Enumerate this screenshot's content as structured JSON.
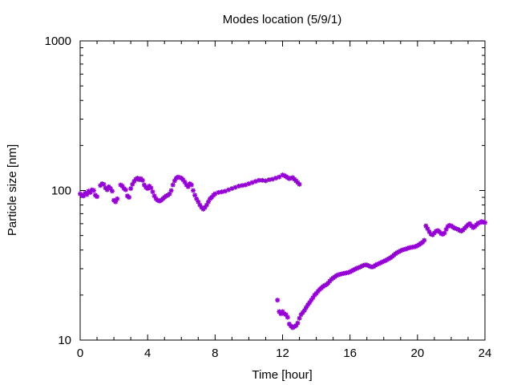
{
  "chart_data": {
    "type": "scatter",
    "title": "Modes location (5/9/1)",
    "xlabel": "Time [hour]",
    "ylabel": "Particle size [nm]",
    "xlim": [
      0,
      24
    ],
    "ylim": [
      10,
      1000
    ],
    "yscale": "log",
    "xticks": [
      0,
      4,
      8,
      12,
      16,
      20,
      24
    ],
    "xtick_labels": [
      "0",
      "4",
      "8",
      "12",
      "16",
      "20",
      "24"
    ],
    "yticks": [
      10,
      100,
      1000
    ],
    "ytick_labels": [
      "10",
      "100",
      "1000"
    ],
    "grid": false,
    "legend": "none",
    "marker_color": "#9400d3",
    "series": [
      {
        "points": [
          [
            0.0,
            95
          ],
          [
            0.1,
            93
          ],
          [
            0.2,
            92
          ],
          [
            0.3,
            96
          ],
          [
            0.4,
            94
          ],
          [
            0.5,
            99
          ],
          [
            0.6,
            97
          ],
          [
            0.7,
            101
          ],
          [
            0.8,
            100
          ],
          [
            0.9,
            93
          ],
          [
            1.0,
            91
          ],
          [
            1.2,
            108
          ],
          [
            1.3,
            111
          ],
          [
            1.4,
            110
          ],
          [
            1.5,
            104
          ],
          [
            1.6,
            101
          ],
          [
            1.7,
            106
          ],
          [
            1.8,
            103
          ],
          [
            1.9,
            99
          ],
          [
            2.0,
            86
          ],
          [
            2.1,
            84
          ],
          [
            2.2,
            88
          ],
          [
            2.4,
            109
          ],
          [
            2.5,
            107
          ],
          [
            2.6,
            103
          ],
          [
            2.7,
            101
          ],
          [
            2.8,
            92
          ],
          [
            2.9,
            90
          ],
          [
            3.0,
            103
          ],
          [
            3.1,
            110
          ],
          [
            3.2,
            115
          ],
          [
            3.3,
            119
          ],
          [
            3.4,
            121
          ],
          [
            3.5,
            118
          ],
          [
            3.6,
            120
          ],
          [
            3.7,
            117
          ],
          [
            3.8,
            109
          ],
          [
            3.9,
            105
          ],
          [
            4.0,
            103
          ],
          [
            4.1,
            107
          ],
          [
            4.2,
            104
          ],
          [
            4.3,
            98
          ],
          [
            4.4,
            92
          ],
          [
            4.5,
            88
          ],
          [
            4.6,
            86
          ],
          [
            4.7,
            85
          ],
          [
            4.8,
            86
          ],
          [
            4.9,
            88
          ],
          [
            5.0,
            90
          ],
          [
            5.1,
            92
          ],
          [
            5.2,
            93
          ],
          [
            5.3,
            95
          ],
          [
            5.4,
            100
          ],
          [
            5.5,
            109
          ],
          [
            5.6,
            116
          ],
          [
            5.7,
            121
          ],
          [
            5.8,
            123
          ],
          [
            5.9,
            122
          ],
          [
            6.0,
            121
          ],
          [
            6.1,
            118
          ],
          [
            6.2,
            114
          ],
          [
            6.3,
            109
          ],
          [
            6.4,
            106
          ],
          [
            6.5,
            111
          ],
          [
            6.6,
            109
          ],
          [
            6.7,
            100
          ],
          [
            6.8,
            93
          ],
          [
            6.9,
            88
          ],
          [
            7.0,
            84
          ],
          [
            7.1,
            80
          ],
          [
            7.2,
            77
          ],
          [
            7.3,
            75
          ],
          [
            7.4,
            77
          ],
          [
            7.5,
            80
          ],
          [
            7.6,
            84
          ],
          [
            7.7,
            88
          ],
          [
            7.8,
            90
          ],
          [
            7.9,
            93
          ],
          [
            8.0,
            95
          ],
          [
            8.2,
            97
          ],
          [
            8.4,
            98
          ],
          [
            8.6,
            99
          ],
          [
            8.8,
            101
          ],
          [
            9.0,
            103
          ],
          [
            9.2,
            105
          ],
          [
            9.4,
            107
          ],
          [
            9.6,
            108
          ],
          [
            9.8,
            109
          ],
          [
            10.0,
            111
          ],
          [
            10.2,
            113
          ],
          [
            10.4,
            115
          ],
          [
            10.6,
            117
          ],
          [
            10.8,
            117
          ],
          [
            11.0,
            116
          ],
          [
            11.2,
            118
          ],
          [
            11.4,
            119
          ],
          [
            11.6,
            121
          ],
          [
            11.8,
            123
          ],
          [
            12.0,
            127
          ],
          [
            12.1,
            126
          ],
          [
            12.2,
            124
          ],
          [
            12.3,
            122
          ],
          [
            12.4,
            120
          ],
          [
            12.5,
            121
          ],
          [
            12.6,
            122
          ],
          [
            12.7,
            119
          ],
          [
            12.8,
            116
          ],
          [
            12.9,
            113
          ],
          [
            13.0,
            110
          ],
          [
            11.7,
            18.5
          ],
          [
            11.8,
            15.5
          ],
          [
            11.9,
            15.0
          ],
          [
            12.0,
            15.5
          ],
          [
            12.1,
            15.0
          ],
          [
            12.2,
            14.8
          ],
          [
            12.3,
            14.2
          ],
          [
            12.4,
            12.8
          ],
          [
            12.5,
            12.4
          ],
          [
            12.6,
            12.1
          ],
          [
            12.7,
            12.3
          ],
          [
            12.8,
            12.5
          ],
          [
            12.9,
            13.0
          ],
          [
            13.0,
            14.0
          ],
          [
            13.1,
            14.8
          ],
          [
            13.2,
            15.3
          ],
          [
            13.3,
            15.8
          ],
          [
            13.4,
            16.5
          ],
          [
            13.5,
            17.2
          ],
          [
            13.6,
            17.8
          ],
          [
            13.7,
            18.5
          ],
          [
            13.8,
            19.2
          ],
          [
            13.9,
            20.0
          ],
          [
            14.0,
            20.5
          ],
          [
            14.1,
            21.2
          ],
          [
            14.2,
            21.8
          ],
          [
            14.3,
            22.3
          ],
          [
            14.4,
            22.8
          ],
          [
            14.5,
            23.2
          ],
          [
            14.6,
            23.5
          ],
          [
            14.7,
            24.0
          ],
          [
            14.8,
            24.8
          ],
          [
            14.9,
            25.5
          ],
          [
            15.0,
            26.0
          ],
          [
            15.1,
            26.5
          ],
          [
            15.2,
            27.0
          ],
          [
            15.3,
            27.3
          ],
          [
            15.4,
            27.5
          ],
          [
            15.5,
            27.7
          ],
          [
            15.6,
            27.9
          ],
          [
            15.7,
            28.0
          ],
          [
            15.8,
            28.2
          ],
          [
            15.9,
            28.3
          ],
          [
            16.0,
            28.6
          ],
          [
            16.1,
            29.0
          ],
          [
            16.2,
            29.4
          ],
          [
            16.3,
            29.8
          ],
          [
            16.4,
            30.2
          ],
          [
            16.5,
            30.5
          ],
          [
            16.6,
            30.8
          ],
          [
            16.7,
            31.2
          ],
          [
            16.8,
            31.6
          ],
          [
            16.9,
            31.8
          ],
          [
            17.0,
            31.8
          ],
          [
            17.1,
            31.4
          ],
          [
            17.2,
            31.0
          ],
          [
            17.3,
            30.8
          ],
          [
            17.4,
            31.0
          ],
          [
            17.5,
            31.6
          ],
          [
            17.6,
            32.1
          ],
          [
            17.7,
            32.4
          ],
          [
            17.8,
            32.8
          ],
          [
            17.9,
            33.2
          ],
          [
            18.0,
            33.6
          ],
          [
            18.1,
            34.0
          ],
          [
            18.2,
            34.5
          ],
          [
            18.3,
            35.0
          ],
          [
            18.4,
            35.5
          ],
          [
            18.5,
            36.2
          ],
          [
            18.6,
            37.0
          ],
          [
            18.7,
            37.8
          ],
          [
            18.8,
            38.5
          ],
          [
            18.9,
            39.0
          ],
          [
            19.0,
            39.5
          ],
          [
            19.1,
            40.0
          ],
          [
            19.2,
            40.3
          ],
          [
            19.3,
            40.6
          ],
          [
            19.4,
            41.0
          ],
          [
            19.5,
            41.4
          ],
          [
            19.6,
            41.6
          ],
          [
            19.7,
            41.8
          ],
          [
            19.8,
            42.0
          ],
          [
            19.9,
            42.3
          ],
          [
            20.0,
            42.8
          ],
          [
            20.1,
            43.5
          ],
          [
            20.2,
            44.3
          ],
          [
            20.3,
            45.0
          ],
          [
            20.4,
            46.5
          ],
          [
            20.5,
            58.0
          ],
          [
            20.6,
            55.5
          ],
          [
            20.7,
            53.0
          ],
          [
            20.8,
            51.0
          ],
          [
            20.9,
            50.5
          ],
          [
            21.0,
            52.0
          ],
          [
            21.1,
            53.5
          ],
          [
            21.2,
            54.0
          ],
          [
            21.3,
            53.0
          ],
          [
            21.4,
            51.5
          ],
          [
            21.5,
            51.0
          ],
          [
            21.6,
            52.0
          ],
          [
            21.7,
            55.0
          ],
          [
            21.8,
            57.5
          ],
          [
            21.9,
            58.5
          ],
          [
            22.0,
            58.0
          ],
          [
            22.1,
            57.0
          ],
          [
            22.2,
            56.0
          ],
          [
            22.3,
            55.5
          ],
          [
            22.4,
            55.0
          ],
          [
            22.5,
            54.0
          ],
          [
            22.6,
            53.5
          ],
          [
            22.7,
            54.5
          ],
          [
            22.8,
            56.0
          ],
          [
            22.9,
            57.5
          ],
          [
            23.0,
            59.0
          ],
          [
            23.1,
            60.0
          ],
          [
            23.2,
            58.0
          ],
          [
            23.3,
            56.5
          ],
          [
            23.4,
            57.5
          ],
          [
            23.5,
            59.0
          ],
          [
            23.6,
            60.5
          ],
          [
            23.7,
            61.0
          ],
          [
            23.8,
            62.0
          ],
          [
            23.9,
            61.5
          ],
          [
            24.0,
            61.0
          ]
        ]
      }
    ]
  }
}
